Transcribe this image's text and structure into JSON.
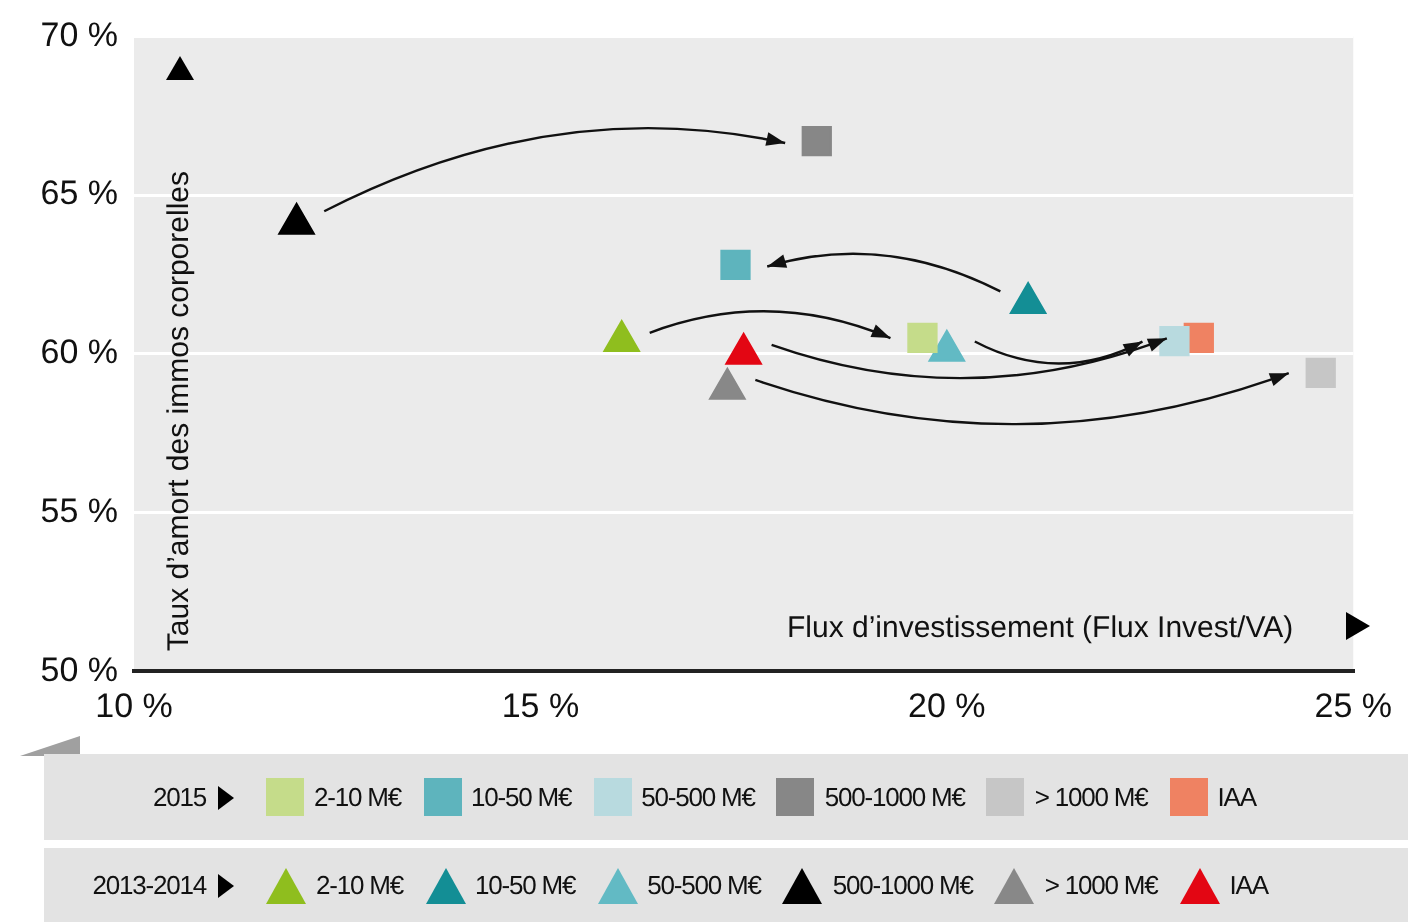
{
  "chart_data": {
    "type": "scatter",
    "xlabel": "Flux d’investissement (Flux Invest/VA)",
    "ylabel": "Taux d’amort des immos corporelles",
    "xlim": [
      10,
      25
    ],
    "xticks": [
      {
        "value": 10,
        "label": "10 %"
      },
      {
        "value": 15,
        "label": "15 %"
      },
      {
        "value": 20,
        "label": "20 %"
      },
      {
        "value": 25,
        "label": "25 %"
      }
    ],
    "ylim": [
      50,
      70
    ],
    "yticks": [
      {
        "value": 50,
        "label": "50 %"
      },
      {
        "value": 55,
        "label": "55 %"
      },
      {
        "value": 60,
        "label": "60 %"
      },
      {
        "value": 65,
        "label": "65 %"
      },
      {
        "value": 70,
        "label": "70 %"
      }
    ],
    "grid": "y",
    "legend": "bottom",
    "annotations": [
      "2015",
      "2013-2014"
    ],
    "series": [
      {
        "name": "2-10 M€",
        "color": "#c5dc8a",
        "marker": "square",
        "x": [
          19.7
        ],
        "values": [
          60.5
        ]
      },
      {
        "name": "10-50 M€",
        "color": "#5eb4bd",
        "marker": "square",
        "x": [
          17.4
        ],
        "values": [
          62.8
        ]
      },
      {
        "name": "50-500 M€",
        "color": "#b8dadf",
        "marker": "square",
        "x": [
          22.8
        ],
        "values": [
          60.4
        ]
      },
      {
        "name": "500-1000 M€",
        "color": "#878787",
        "marker": "square",
        "x": [
          18.4
        ],
        "values": [
          66.7
        ]
      },
      {
        "name": "> 1000 M€",
        "color": "#c6c6c6",
        "marker": "square",
        "x": [
          24.6
        ],
        "values": [
          59.4
        ]
      },
      {
        "name": "IAA",
        "color": "#ef8262",
        "marker": "square",
        "x": [
          23.1
        ],
        "values": [
          60.5
        ]
      },
      {
        "name": "2-10 M€",
        "color": "#8fbe1e",
        "marker": "triangle",
        "x": [
          16.0
        ],
        "values": [
          60.4
        ]
      },
      {
        "name": "10-50 M€",
        "color": "#138e95",
        "marker": "triangle",
        "x": [
          21.0
        ],
        "values": [
          61.6
        ]
      },
      {
        "name": "50-500 M€",
        "color": "#62bac4",
        "marker": "triangle",
        "x": [
          20.0
        ],
        "values": [
          60.1
        ]
      },
      {
        "name": "500-1000 M€",
        "color": "#000000",
        "marker": "triangle",
        "x": [
          12.0
        ],
        "values": [
          64.1
        ]
      },
      {
        "name": "> 1000 M€",
        "color": "#888888",
        "marker": "triangle",
        "x": [
          17.3
        ],
        "values": [
          58.9
        ]
      },
      {
        "name": "IAA",
        "color": "#e30613",
        "marker": "triangle",
        "x": [
          17.5
        ],
        "values": [
          60.0
        ]
      }
    ]
  }
}
